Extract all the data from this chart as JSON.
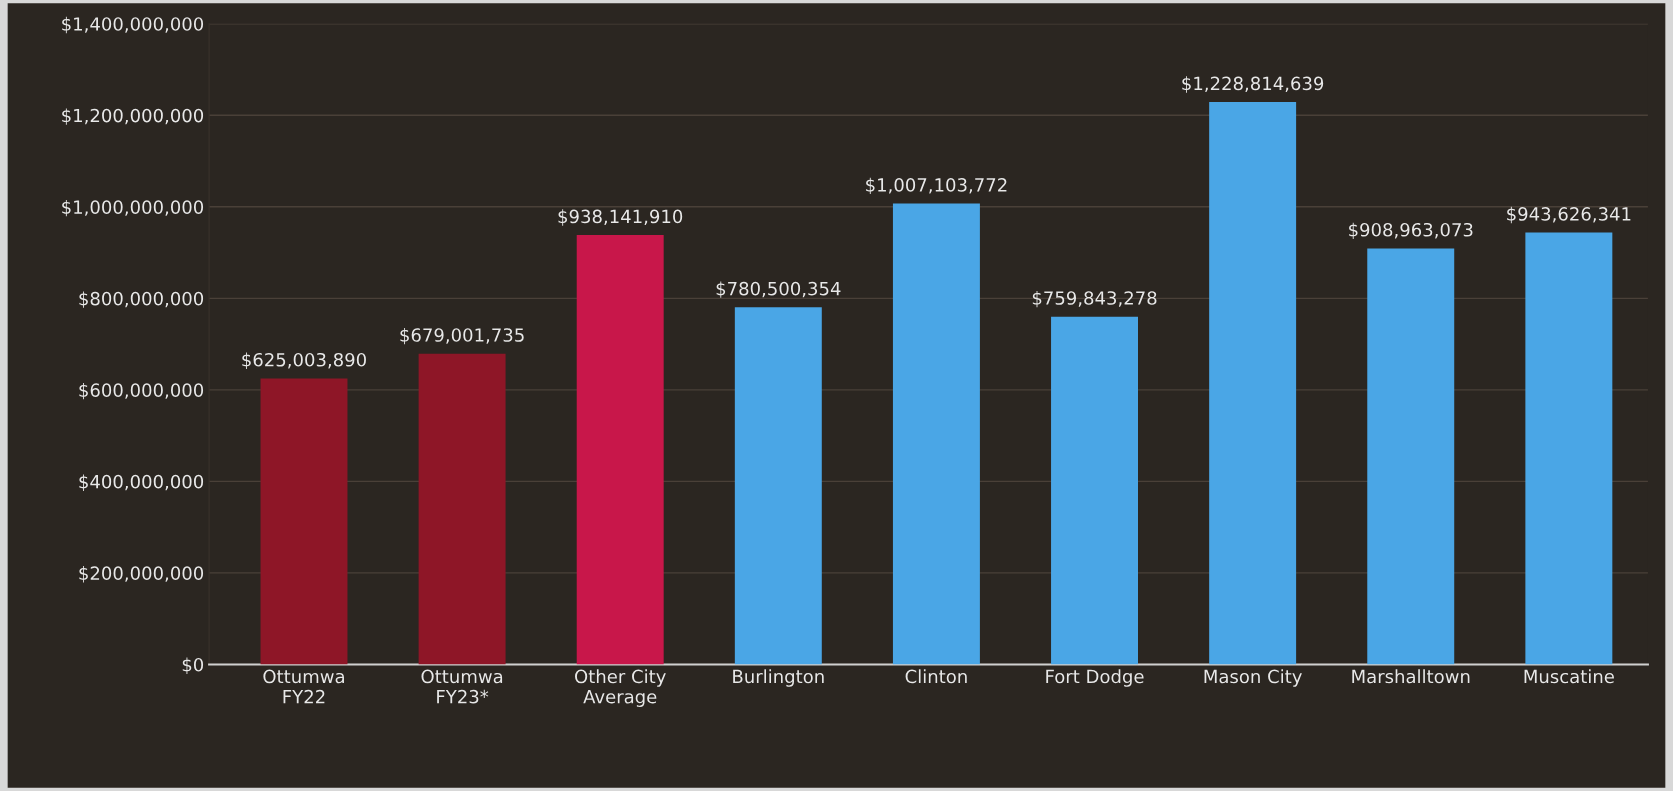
{
  "chart_data": {
    "type": "bar",
    "categories": [
      "Ottumwa\nFY22",
      "Ottumwa\nFY23*",
      "Other City\nAverage",
      "Burlington",
      "Clinton",
      "Fort Dodge",
      "Mason City",
      "Marshalltown",
      "Muscatine"
    ],
    "values": [
      625003890,
      679001735,
      938141910,
      780500354,
      1007103772,
      759843278,
      1228814639,
      908963073,
      943626341
    ],
    "colors": [
      "#8e1627",
      "#8e1627",
      "#c8174a",
      "#4aa6e6",
      "#4aa6e6",
      "#4aa6e6",
      "#4aa6e6",
      "#4aa6e6",
      "#4aa6e6"
    ],
    "value_labels": [
      "$625,003,890",
      "$679,001,735",
      "$938,141,910",
      "$780,500,354",
      "$1,007,103,772",
      "$759,843,278",
      "$1,228,814,639",
      "$908,963,073",
      "$943,626,341"
    ],
    "ylim": [
      0,
      1400000000
    ],
    "yticks": [
      {
        "value": 0,
        "label": "$0"
      },
      {
        "value": 200000000,
        "label": "$200,000,000"
      },
      {
        "value": 400000000,
        "label": "$400,000,000"
      },
      {
        "value": 600000000,
        "label": "$600,000,000"
      },
      {
        "value": 800000000,
        "label": "$800,000,000"
      },
      {
        "value": 1000000000,
        "label": "$1,000,000,000"
      },
      {
        "value": 1200000000,
        "label": "$1,200,000,000"
      },
      {
        "value": 1400000000,
        "label": "$1,400,000,000"
      }
    ],
    "grid": "y"
  }
}
